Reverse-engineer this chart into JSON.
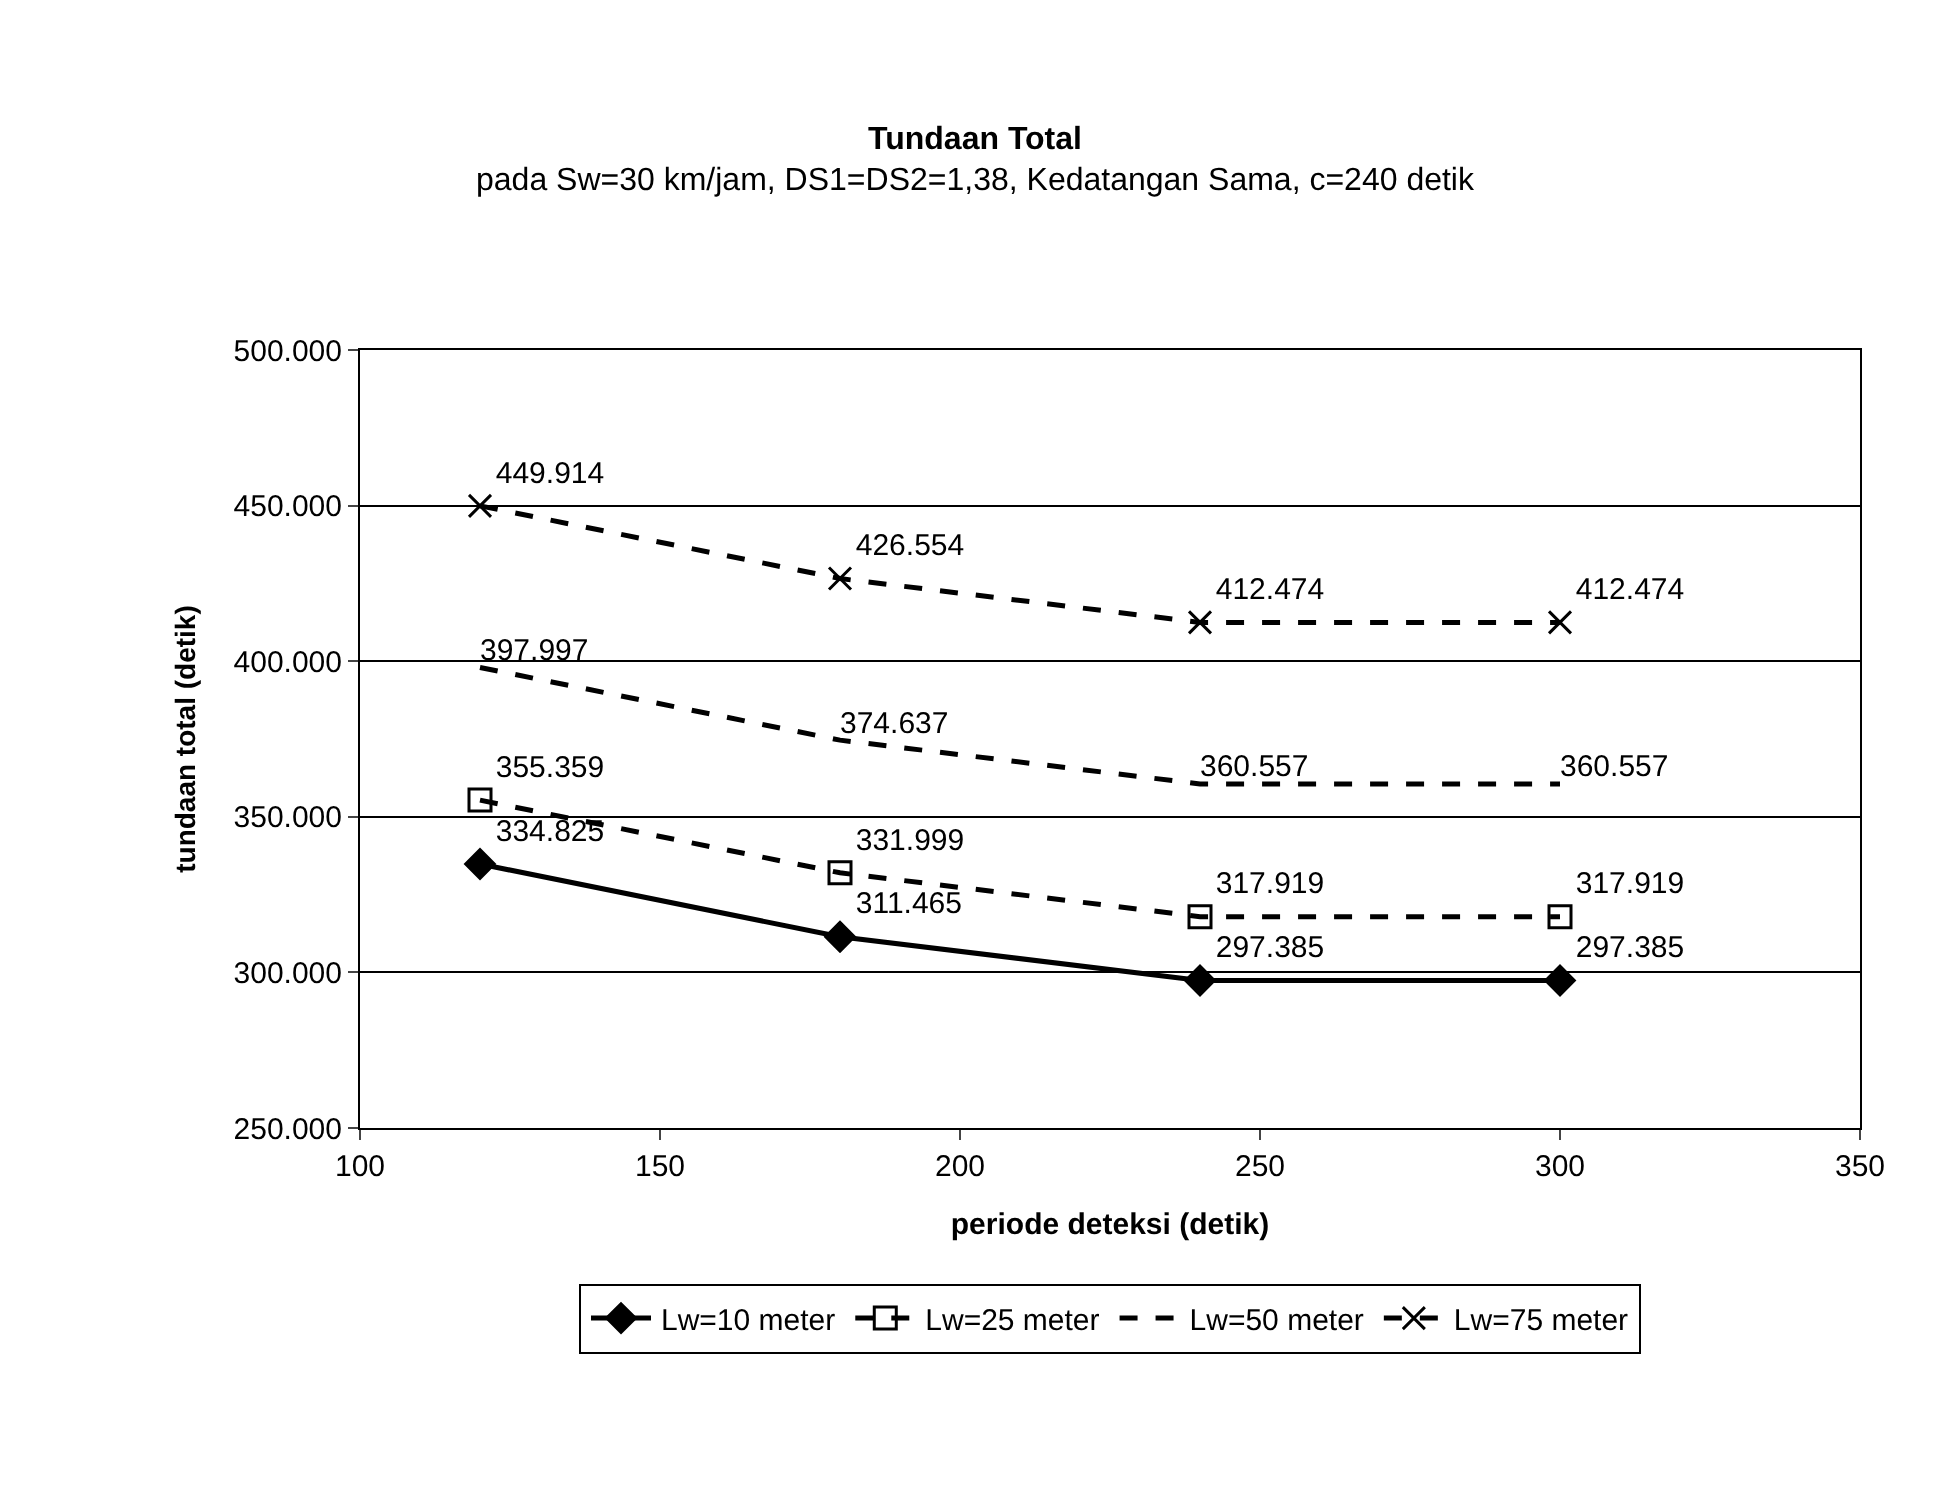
{
  "chart_data": {
    "type": "line",
    "title": "Tundaan Total",
    "subtitle": "pada Sw=30 km/jam, DS1=DS2=1,38, Kedatangan Sama, c=240 detik",
    "xlabel": "periode deteksi (detik)",
    "ylabel": "tundaan total (detik)",
    "x": [
      120,
      180,
      240,
      300
    ],
    "series": [
      {
        "name": "Lw=10 meter",
        "color": "#000000",
        "values": [
          334825,
          311465,
          297385,
          297385
        ],
        "value_labels": [
          "334.825",
          "311.465",
          "297.385",
          "297.385"
        ],
        "marker": "diamond",
        "line_style": "solid"
      },
      {
        "name": "Lw=25 meter",
        "color": "#000000",
        "values": [
          355359,
          331999,
          317919,
          317919
        ],
        "value_labels": [
          "355.359",
          "331.999",
          "317.919",
          "317.919"
        ],
        "marker": "square",
        "line_style": "dashed"
      },
      {
        "name": "Lw=50 meter",
        "color": "#000000",
        "values": [
          397997,
          374637,
          360557,
          360557
        ],
        "value_labels": [
          "397.997",
          "374.637",
          "360.557",
          "360.557"
        ],
        "marker": "none",
        "line_style": "dashed"
      },
      {
        "name": "Lw=75 meter",
        "color": "#000000",
        "values": [
          449914,
          426554,
          412474,
          412474
        ],
        "value_labels": [
          "449.914",
          "426.554",
          "412.474",
          "412.474"
        ],
        "marker": "cross",
        "line_style": "dashed"
      }
    ],
    "xlim": [
      100,
      350
    ],
    "xticks": [
      100,
      150,
      200,
      250,
      300,
      350
    ],
    "ylim": [
      250000,
      500000
    ],
    "yticks": [
      {
        "value": 250000,
        "label": "250.000"
      },
      {
        "value": 300000,
        "label": "300.000"
      },
      {
        "value": 350000,
        "label": "350.000"
      },
      {
        "value": 400000,
        "label": "400.000"
      },
      {
        "value": 450000,
        "label": "450.000"
      },
      {
        "value": 500000,
        "label": "500.000"
      }
    ],
    "grid": "y",
    "legend": "bottom"
  }
}
